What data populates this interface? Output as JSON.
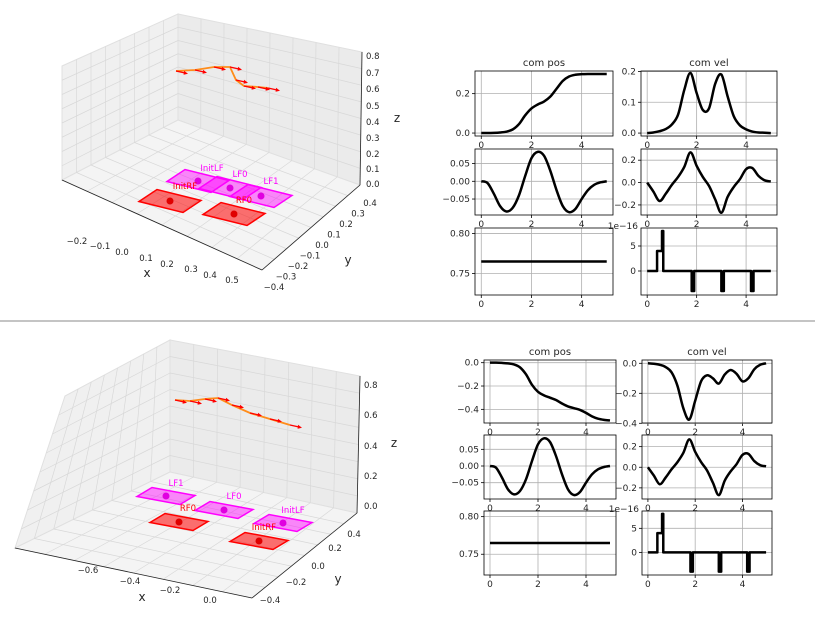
{
  "colors": {
    "line": "#000000",
    "left_foot": "#ff00ff",
    "right_foot": "#ff0000",
    "trajectory": "#ff8c1a",
    "arrow": "#ff0000",
    "grid": "#b0b0b0",
    "pane": "#f2f2f2"
  },
  "scene3d": [
    {
      "name": "top",
      "xlabel": "x",
      "ylabel": "y",
      "zlabel": "z",
      "xticks": [
        "−0.2",
        "−0.1",
        "0.0",
        "0.1",
        "0.2",
        "0.3",
        "0.4",
        "0.5"
      ],
      "yticks": [
        "0.4",
        "0.3",
        "0.2",
        "0.1",
        "0.0",
        "−0.1",
        "−0.2",
        "−0.3",
        "−0.4"
      ],
      "zticks": [
        "0.0",
        "0.1",
        "0.2",
        "0.3",
        "0.4",
        "0.5",
        "0.6",
        "0.7",
        "0.8"
      ],
      "feet": [
        {
          "label": "InitLF",
          "side": "left"
        },
        {
          "label": "LF0",
          "side": "left"
        },
        {
          "label": "LF1",
          "side": "left"
        },
        {
          "label": "InitRF",
          "side": "right"
        },
        {
          "label": "RF0",
          "side": "right"
        }
      ]
    },
    {
      "name": "bottom",
      "xlabel": "x",
      "ylabel": "y",
      "zlabel": "z",
      "xticks": [
        "−0.6",
        "−0.4",
        "−0.2",
        "0.0"
      ],
      "yticks": [
        "0.4",
        "0.2",
        "0.0",
        "−0.2",
        "−0.4"
      ],
      "zticks": [
        "0.0",
        "0.2",
        "0.4",
        "0.6",
        "0.8"
      ],
      "feet": [
        {
          "label": "LF1",
          "side": "left"
        },
        {
          "label": "LF0",
          "side": "left"
        },
        {
          "label": "InitLF",
          "side": "left"
        },
        {
          "label": "RF0",
          "side": "right"
        },
        {
          "label": "InitRF",
          "side": "right"
        }
      ]
    }
  ],
  "chart_data": [
    {
      "type": "line",
      "title": "com pos",
      "xlim": [
        -0.25,
        5.25
      ],
      "ylim": [
        -0.015,
        0.315
      ],
      "xticks": [
        0,
        2,
        4
      ],
      "yticks": [
        {
          "v": 0,
          "l": "0.0"
        },
        {
          "v": 0.2,
          "l": "0.2"
        }
      ],
      "smooth": true,
      "x": [
        0,
        0.25,
        0.5,
        0.75,
        1,
        1.25,
        1.5,
        1.75,
        2,
        2.25,
        2.5,
        2.75,
        3,
        3.25,
        3.5,
        3.75,
        4,
        4.25,
        4.5,
        4.75,
        5
      ],
      "y": [
        0,
        0,
        0.001,
        0.003,
        0.007,
        0.018,
        0.045,
        0.09,
        0.125,
        0.145,
        0.16,
        0.185,
        0.225,
        0.265,
        0.287,
        0.296,
        0.299,
        0.3,
        0.3,
        0.3,
        0.3
      ]
    },
    {
      "type": "line",
      "title": "com vel",
      "xlim": [
        -0.25,
        5.25
      ],
      "ylim": [
        -0.0095,
        0.2015
      ],
      "xticks": [
        0,
        2,
        4
      ],
      "yticks": [
        {
          "v": 0,
          "l": "0.0"
        },
        {
          "v": 0.1,
          "l": "0.1"
        },
        {
          "v": 0.2,
          "l": "0.2"
        }
      ],
      "smooth": true,
      "x": [
        0,
        0.25,
        0.5,
        0.75,
        1,
        1.25,
        1.5,
        1.75,
        2,
        2.25,
        2.5,
        2.75,
        3,
        3.25,
        3.5,
        3.75,
        4,
        4.25,
        4.5,
        4.75,
        5
      ],
      "y": [
        0,
        0.002,
        0.006,
        0.013,
        0.028,
        0.06,
        0.14,
        0.195,
        0.13,
        0.075,
        0.08,
        0.16,
        0.19,
        0.12,
        0.055,
        0.025,
        0.012,
        0.005,
        0.002,
        0.001,
        0
      ]
    },
    {
      "type": "line",
      "title": "",
      "xlim": [
        -0.25,
        5.25
      ],
      "ylim": [
        -0.095,
        0.091
      ],
      "xticks": [
        0,
        2,
        4
      ],
      "yticks": [
        {
          "v": -0.05,
          "l": "−0.05"
        },
        {
          "v": 0,
          "l": "0.00"
        },
        {
          "v": 0.05,
          "l": "0.05"
        }
      ],
      "smooth": true,
      "x": [
        0,
        0.25,
        0.5,
        0.75,
        1,
        1.25,
        1.5,
        1.75,
        2,
        2.25,
        2.5,
        2.75,
        3,
        3.25,
        3.5,
        3.75,
        4,
        4.25,
        4.5,
        4.75,
        5
      ],
      "y": [
        0,
        -0.005,
        -0.035,
        -0.07,
        -0.085,
        -0.075,
        -0.04,
        0.015,
        0.065,
        0.083,
        0.072,
        0.03,
        -0.025,
        -0.07,
        -0.087,
        -0.078,
        -0.05,
        -0.025,
        -0.01,
        -0.003,
        0
      ]
    },
    {
      "type": "line",
      "title": "",
      "xlim": [
        -0.25,
        5.25
      ],
      "ylim": [
        -0.29,
        0.3
      ],
      "xticks": [
        0,
        2,
        4
      ],
      "yticks": [
        {
          "v": -0.2,
          "l": "−0.2"
        },
        {
          "v": 0,
          "l": "0.0"
        },
        {
          "v": 0.2,
          "l": "0.2"
        }
      ],
      "smooth": true,
      "x": [
        0,
        0.25,
        0.5,
        0.75,
        1,
        1.25,
        1.5,
        1.75,
        2,
        2.25,
        2.5,
        2.75,
        3,
        3.25,
        3.5,
        3.75,
        4,
        4.25,
        4.5,
        4.75,
        5
      ],
      "y": [
        0,
        -0.08,
        -0.165,
        -0.1,
        -0.02,
        0.05,
        0.14,
        0.27,
        0.15,
        0.05,
        -0.03,
        -0.15,
        -0.27,
        -0.13,
        -0.04,
        0.03,
        0.12,
        0.13,
        0.06,
        0.02,
        0.01
      ]
    },
    {
      "type": "line",
      "title": "",
      "xlim": [
        -0.25,
        5.25
      ],
      "ylim": [
        0.723,
        0.807
      ],
      "xticks": [
        0,
        2,
        4
      ],
      "yticks": [
        {
          "v": 0.75,
          "l": "0.75"
        },
        {
          "v": 0.8,
          "l": "0.80"
        }
      ],
      "smooth": false,
      "x": [
        0,
        5
      ],
      "y": [
        0.765,
        0.765
      ]
    },
    {
      "type": "line",
      "title": "",
      "offset_text": "1e−16",
      "xlim": [
        -0.25,
        5.25
      ],
      "ylim": [
        -4.8,
        8.6
      ],
      "xticks": [
        0,
        2,
        4
      ],
      "yticks": [
        {
          "v": 0,
          "l": "0"
        },
        {
          "v": 5,
          "l": "5"
        }
      ],
      "smooth": false,
      "x": [
        0,
        0.4,
        0.4,
        0.6,
        0.6,
        0.65,
        0.65,
        1.8,
        1.8,
        1.9,
        1.9,
        3,
        3,
        3.1,
        3.1,
        4.2,
        4.2,
        4.3,
        4.3,
        5
      ],
      "y": [
        0,
        0,
        4,
        4,
        8,
        8,
        0,
        0,
        -4,
        -4,
        0,
        0,
        -4,
        -4,
        0,
        0,
        -4,
        -4,
        0,
        0
      ]
    },
    {
      "type": "line",
      "title": "com pos",
      "xlim": [
        -0.25,
        5.25
      ],
      "ylim": [
        -0.517,
        0.023
      ],
      "xticks": [
        0,
        2,
        4
      ],
      "yticks": [
        {
          "v": 0,
          "l": "0.0"
        },
        {
          "v": -0.2,
          "l": "−0.2"
        },
        {
          "v": -0.4,
          "l": "−0.4"
        }
      ],
      "smooth": true,
      "x": [
        0,
        0.25,
        0.5,
        0.75,
        1,
        1.25,
        1.5,
        1.75,
        2,
        2.25,
        2.5,
        2.75,
        3,
        3.25,
        3.5,
        3.75,
        4,
        4.25,
        4.5,
        4.75,
        5
      ],
      "y": [
        0,
        0,
        -0.002,
        -0.006,
        -0.015,
        -0.04,
        -0.1,
        -0.19,
        -0.25,
        -0.28,
        -0.3,
        -0.32,
        -0.35,
        -0.375,
        -0.39,
        -0.405,
        -0.43,
        -0.46,
        -0.48,
        -0.49,
        -0.495
      ]
    },
    {
      "type": "line",
      "title": "com vel",
      "xlim": [
        -0.25,
        5.25
      ],
      "ylim": [
        -0.398,
        0.022
      ],
      "xticks": [
        0,
        2,
        4
      ],
      "yticks": [
        {
          "v": 0,
          "l": "0.0"
        },
        {
          "v": -0.2,
          "l": "−0.2"
        },
        {
          "v": -0.4,
          "l": "−0.4"
        }
      ],
      "smooth": true,
      "x": [
        0,
        0.25,
        0.5,
        0.75,
        1,
        1.25,
        1.5,
        1.75,
        2,
        2.25,
        2.5,
        2.75,
        3,
        3.25,
        3.5,
        3.75,
        4,
        4.25,
        4.5,
        4.75,
        5
      ],
      "y": [
        0,
        -0.003,
        -0.01,
        -0.025,
        -0.06,
        -0.15,
        -0.3,
        -0.375,
        -0.25,
        -0.12,
        -0.08,
        -0.1,
        -0.135,
        -0.075,
        -0.045,
        -0.07,
        -0.12,
        -0.1,
        -0.04,
        -0.01,
        0
      ]
    },
    {
      "type": "line",
      "title": "",
      "xlim": [
        -0.25,
        5.25
      ],
      "ylim": [
        -0.099,
        0.093
      ],
      "xticks": [
        0,
        2,
        4
      ],
      "yticks": [
        {
          "v": -0.05,
          "l": "−0.05"
        },
        {
          "v": 0,
          "l": "0.00"
        },
        {
          "v": 0.05,
          "l": "0.05"
        }
      ],
      "smooth": true,
      "x": [
        0,
        0.25,
        0.5,
        0.75,
        1,
        1.25,
        1.5,
        1.75,
        2,
        2.25,
        2.5,
        2.75,
        3,
        3.25,
        3.5,
        3.75,
        4,
        4.25,
        4.5,
        4.75,
        5
      ],
      "y": [
        0,
        -0.005,
        -0.035,
        -0.07,
        -0.085,
        -0.075,
        -0.04,
        0.015,
        0.065,
        0.083,
        0.072,
        0.03,
        -0.025,
        -0.07,
        -0.087,
        -0.078,
        -0.05,
        -0.025,
        -0.01,
        -0.003,
        0
      ]
    },
    {
      "type": "line",
      "title": "",
      "xlim": [
        -0.25,
        5.25
      ],
      "ylim": [
        -0.308,
        0.313
      ],
      "xticks": [
        0,
        2,
        4
      ],
      "yticks": [
        {
          "v": -0.2,
          "l": "−0.2"
        },
        {
          "v": 0,
          "l": "0.0"
        },
        {
          "v": 0.2,
          "l": "0.2"
        }
      ],
      "smooth": true,
      "x": [
        0,
        0.25,
        0.5,
        0.75,
        1,
        1.25,
        1.5,
        1.75,
        2,
        2.25,
        2.5,
        2.75,
        3,
        3.25,
        3.5,
        3.75,
        4,
        4.25,
        4.5,
        4.75,
        5
      ],
      "y": [
        0,
        -0.08,
        -0.165,
        -0.1,
        -0.02,
        0.05,
        0.14,
        0.27,
        0.15,
        0.05,
        -0.03,
        -0.15,
        -0.27,
        -0.13,
        -0.04,
        0.03,
        0.12,
        0.13,
        0.06,
        0.02,
        0.01
      ]
    },
    {
      "type": "line",
      "title": "",
      "xlim": [
        -0.25,
        5.25
      ],
      "ylim": [
        0.7224,
        0.8075
      ],
      "xticks": [
        0,
        2,
        4
      ],
      "yticks": [
        {
          "v": 0.75,
          "l": "0.75"
        },
        {
          "v": 0.8,
          "l": "0.80"
        }
      ],
      "smooth": false,
      "x": [
        0,
        5
      ],
      "y": [
        0.765,
        0.765
      ]
    },
    {
      "type": "line",
      "title": "",
      "offset_text": "1e−16",
      "xlim": [
        -0.25,
        5.25
      ],
      "ylim": [
        -4.7,
        8.6
      ],
      "xticks": [
        0,
        2,
        4
      ],
      "yticks": [
        {
          "v": 0,
          "l": "0"
        },
        {
          "v": 5,
          "l": "5"
        }
      ],
      "smooth": false,
      "x": [
        0,
        0.4,
        0.4,
        0.6,
        0.6,
        0.65,
        0.65,
        1.8,
        1.8,
        1.9,
        1.9,
        3,
        3,
        3.1,
        3.1,
        4.2,
        4.2,
        4.3,
        4.3,
        5
      ],
      "y": [
        0,
        0,
        4,
        4,
        8,
        8,
        0,
        0,
        -4,
        -4,
        0,
        0,
        -4,
        -4,
        0,
        0,
        -4,
        -4,
        0,
        0
      ]
    }
  ]
}
